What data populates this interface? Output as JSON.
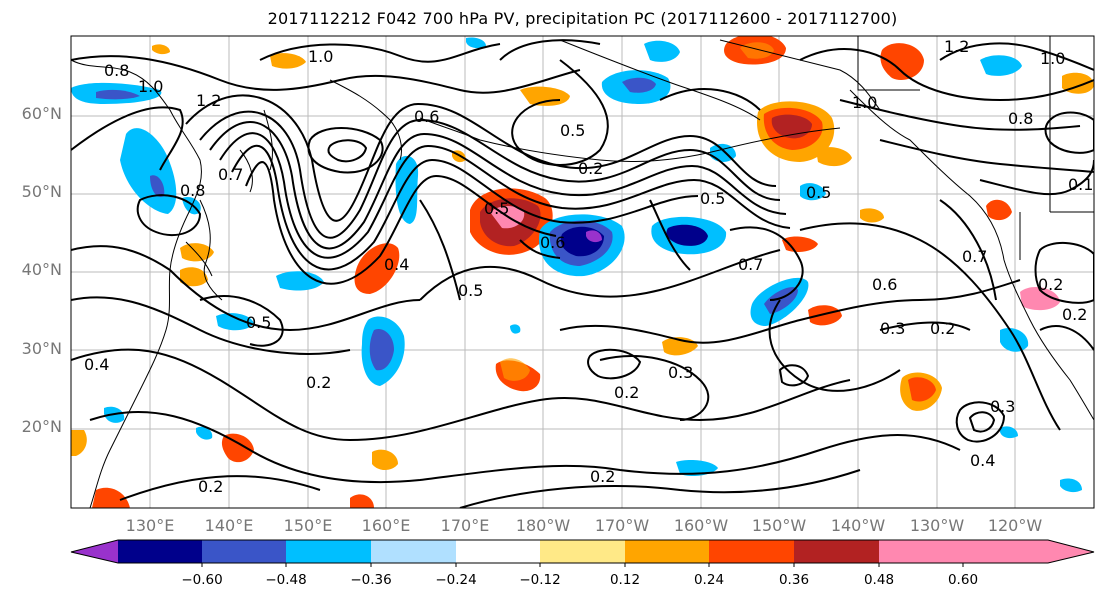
{
  "title": "2017112212 F042 700 hPa PV, precipitation PC (2017112600 - 2017112700)",
  "lat_labels": [
    "60°N",
    "50°N",
    "40°N",
    "30°N",
    "20°N"
  ],
  "lon_labels": [
    "130°E",
    "140°E",
    "150°E",
    "160°E",
    "170°E",
    "180°W",
    "170°W",
    "160°W",
    "150°W",
    "140°W",
    "130°W",
    "120°W"
  ],
  "colorbar": {
    "tick_labels": [
      "−0.60",
      "−0.48",
      "−0.36",
      "−0.24",
      "−0.12",
      "0.12",
      "0.24",
      "0.36",
      "0.48",
      "0.60"
    ],
    "colors": [
      "#9932cc",
      "#00008b",
      "#3a55c8",
      "#00bfff",
      "#b0e0ff",
      "#ffffff",
      "#ffe987",
      "#ffa500",
      "#ff4500",
      "#b22222",
      "#ff88b0"
    ]
  },
  "contour_labels": [
    "0.8",
    "1.0",
    "1.2",
    "1.0",
    "0.6",
    "0.5",
    "0.2",
    "1.0",
    "0.8",
    "0.5",
    "0.7",
    "0.6",
    "0.5",
    "0.5",
    "0.8",
    "0.4",
    "0.5",
    "0.4",
    "0.2",
    "0.5",
    "0.2",
    "0.3",
    "0.6",
    "0.3",
    "0.2",
    "0.7",
    "0.2",
    "0.2",
    "0.3",
    "0.4",
    "0.2",
    "0.2",
    "0.1",
    "0.7",
    "1.2",
    "1.0"
  ]
}
